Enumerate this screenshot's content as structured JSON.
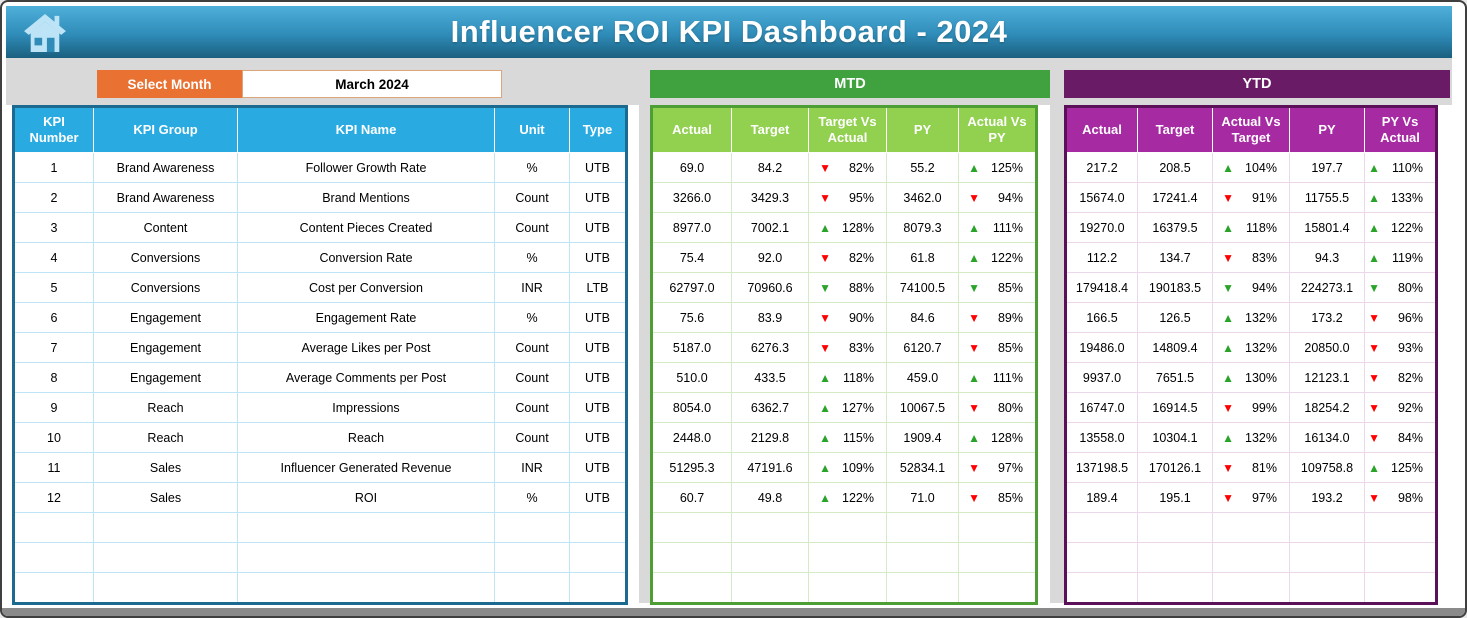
{
  "header": {
    "title": "Influencer ROI KPI Dashboard - 2024"
  },
  "filter": {
    "select_month_label": "Select Month",
    "selected_month": "March 2024"
  },
  "colors": {
    "titlebar_top": "#4FB0DA",
    "titlebar_bottom": "#1A5F7F",
    "home_icon": "#BDE4F6",
    "select_month_orange": "#E97132",
    "kpi_header_blue": "#29ABE2",
    "kpi_border_teal": "#1C6A8F",
    "mtd_band_green": "#3FA23F",
    "mtd_header_green": "#92D050",
    "ytd_band_purple": "#691B66",
    "ytd_header_purple": "#A62AA2",
    "trend_up_green": "#29A329",
    "trend_down_red": "#FE0000"
  },
  "kpi_table": {
    "headers": [
      "KPI Number",
      "KPI Group",
      "KPI Name",
      "Unit",
      "Type"
    ],
    "empty_rows": 3,
    "rows": [
      [
        "1",
        "Brand Awareness",
        "Follower Growth Rate",
        "%",
        "UTB"
      ],
      [
        "2",
        "Brand Awareness",
        "Brand Mentions",
        "Count",
        "UTB"
      ],
      [
        "3",
        "Content",
        "Content Pieces Created",
        "Count",
        "UTB"
      ],
      [
        "4",
        "Conversions",
        "Conversion Rate",
        "%",
        "UTB"
      ],
      [
        "5",
        "Conversions",
        "Cost per Conversion",
        "INR",
        "LTB"
      ],
      [
        "6",
        "Engagement",
        "Engagement Rate",
        "%",
        "UTB"
      ],
      [
        "7",
        "Engagement",
        "Average Likes per Post",
        "Count",
        "UTB"
      ],
      [
        "8",
        "Engagement",
        "Average Comments per Post",
        "Count",
        "UTB"
      ],
      [
        "9",
        "Reach",
        "Impressions",
        "Count",
        "UTB"
      ],
      [
        "10",
        "Reach",
        "Reach",
        "Count",
        "UTB"
      ],
      [
        "11",
        "Sales",
        "Influencer Generated Revenue",
        "INR",
        "UTB"
      ],
      [
        "12",
        "Sales",
        "ROI",
        "%",
        "UTB"
      ]
    ]
  },
  "mtd": {
    "title": "MTD",
    "headers": [
      "Actual",
      "Target",
      "Target Vs Actual",
      "PY",
      "Actual Vs PY"
    ],
    "empty_rows": 3,
    "rows": [
      [
        "69.0",
        "84.2",
        {
          "dir": "down",
          "color": "red",
          "value": "82%"
        },
        "55.2",
        {
          "dir": "up",
          "color": "green",
          "value": "125%"
        }
      ],
      [
        "3266.0",
        "3429.3",
        {
          "dir": "down",
          "color": "red",
          "value": "95%"
        },
        "3462.0",
        {
          "dir": "down",
          "color": "red",
          "value": "94%"
        }
      ],
      [
        "8977.0",
        "7002.1",
        {
          "dir": "up",
          "color": "green",
          "value": "128%"
        },
        "8079.3",
        {
          "dir": "up",
          "color": "green",
          "value": "111%"
        }
      ],
      [
        "75.4",
        "92.0",
        {
          "dir": "down",
          "color": "red",
          "value": "82%"
        },
        "61.8",
        {
          "dir": "up",
          "color": "green",
          "value": "122%"
        }
      ],
      [
        "62797.0",
        "70960.6",
        {
          "dir": "down",
          "color": "green",
          "value": "88%"
        },
        "74100.5",
        {
          "dir": "down",
          "color": "green",
          "value": "85%"
        }
      ],
      [
        "75.6",
        "83.9",
        {
          "dir": "down",
          "color": "red",
          "value": "90%"
        },
        "84.6",
        {
          "dir": "down",
          "color": "red",
          "value": "89%"
        }
      ],
      [
        "5187.0",
        "6276.3",
        {
          "dir": "down",
          "color": "red",
          "value": "83%"
        },
        "6120.7",
        {
          "dir": "down",
          "color": "red",
          "value": "85%"
        }
      ],
      [
        "510.0",
        "433.5",
        {
          "dir": "up",
          "color": "green",
          "value": "118%"
        },
        "459.0",
        {
          "dir": "up",
          "color": "green",
          "value": "111%"
        }
      ],
      [
        "8054.0",
        "6362.7",
        {
          "dir": "up",
          "color": "green",
          "value": "127%"
        },
        "10067.5",
        {
          "dir": "down",
          "color": "red",
          "value": "80%"
        }
      ],
      [
        "2448.0",
        "2129.8",
        {
          "dir": "up",
          "color": "green",
          "value": "115%"
        },
        "1909.4",
        {
          "dir": "up",
          "color": "green",
          "value": "128%"
        }
      ],
      [
        "51295.3",
        "47191.6",
        {
          "dir": "up",
          "color": "green",
          "value": "109%"
        },
        "52834.1",
        {
          "dir": "down",
          "color": "red",
          "value": "97%"
        }
      ],
      [
        "60.7",
        "49.8",
        {
          "dir": "up",
          "color": "green",
          "value": "122%"
        },
        "71.0",
        {
          "dir": "down",
          "color": "red",
          "value": "85%"
        }
      ]
    ]
  },
  "ytd": {
    "title": "YTD",
    "headers": [
      "Actual",
      "Target",
      "Actual Vs Target",
      "PY",
      "PY Vs Actual"
    ],
    "empty_rows": 3,
    "rows": [
      [
        "217.2",
        "208.5",
        {
          "dir": "up",
          "color": "green",
          "value": "104%"
        },
        "197.7",
        {
          "dir": "up",
          "color": "green",
          "value": "110%"
        }
      ],
      [
        "15674.0",
        "17241.4",
        {
          "dir": "down",
          "color": "red",
          "value": "91%"
        },
        "11755.5",
        {
          "dir": "up",
          "color": "green",
          "value": "133%"
        }
      ],
      [
        "19270.0",
        "16379.5",
        {
          "dir": "up",
          "color": "green",
          "value": "118%"
        },
        "15801.4",
        {
          "dir": "up",
          "color": "green",
          "value": "122%"
        }
      ],
      [
        "112.2",
        "134.7",
        {
          "dir": "down",
          "color": "red",
          "value": "83%"
        },
        "94.3",
        {
          "dir": "up",
          "color": "green",
          "value": "119%"
        }
      ],
      [
        "179418.4",
        "190183.5",
        {
          "dir": "down",
          "color": "green",
          "value": "94%"
        },
        "224273.1",
        {
          "dir": "down",
          "color": "green",
          "value": "80%"
        }
      ],
      [
        "166.5",
        "126.5",
        {
          "dir": "up",
          "color": "green",
          "value": "132%"
        },
        "173.2",
        {
          "dir": "down",
          "color": "red",
          "value": "96%"
        }
      ],
      [
        "19486.0",
        "14809.4",
        {
          "dir": "up",
          "color": "green",
          "value": "132%"
        },
        "20850.0",
        {
          "dir": "down",
          "color": "red",
          "value": "93%"
        }
      ],
      [
        "9937.0",
        "7651.5",
        {
          "dir": "up",
          "color": "green",
          "value": "130%"
        },
        "12123.1",
        {
          "dir": "down",
          "color": "red",
          "value": "82%"
        }
      ],
      [
        "16747.0",
        "16914.5",
        {
          "dir": "down",
          "color": "red",
          "value": "99%"
        },
        "18254.2",
        {
          "dir": "down",
          "color": "red",
          "value": "92%"
        }
      ],
      [
        "13558.0",
        "10304.1",
        {
          "dir": "up",
          "color": "green",
          "value": "132%"
        },
        "16134.0",
        {
          "dir": "down",
          "color": "red",
          "value": "84%"
        }
      ],
      [
        "137198.5",
        "170126.1",
        {
          "dir": "down",
          "color": "red",
          "value": "81%"
        },
        "109758.8",
        {
          "dir": "up",
          "color": "green",
          "value": "125%"
        }
      ],
      [
        "189.4",
        "195.1",
        {
          "dir": "down",
          "color": "red",
          "value": "97%"
        },
        "193.2",
        {
          "dir": "down",
          "color": "red",
          "value": "98%"
        }
      ]
    ]
  }
}
